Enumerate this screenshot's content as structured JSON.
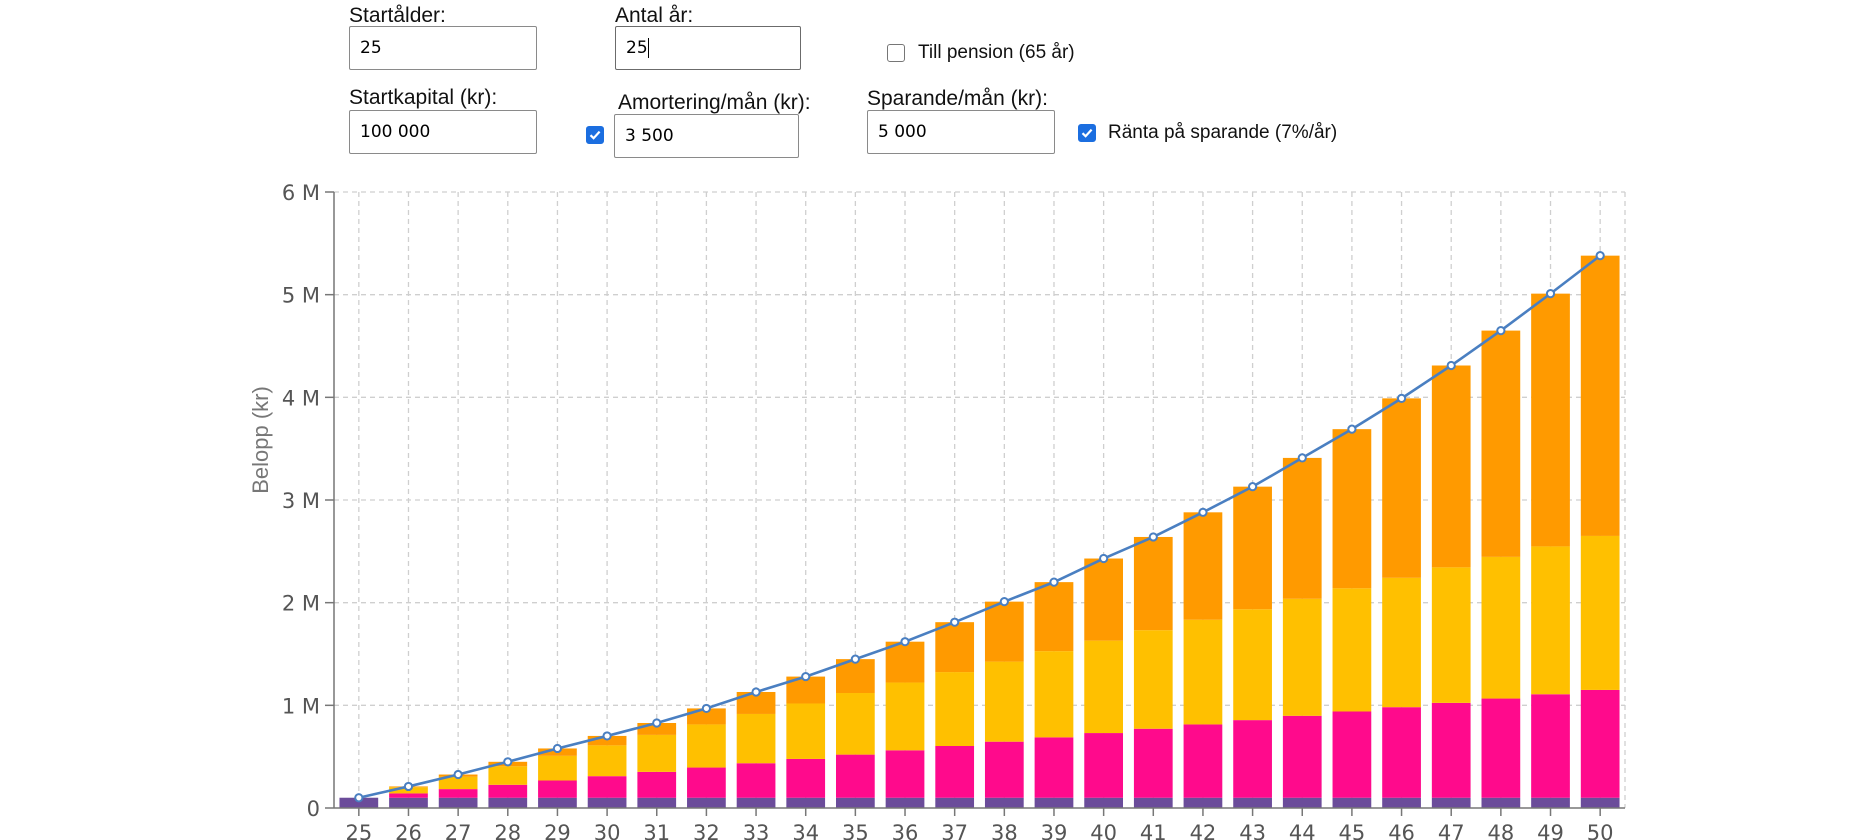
{
  "form": {
    "start_age": {
      "label": "Startålder:",
      "value": "25"
    },
    "years": {
      "label": "Antal år:",
      "value": "25"
    },
    "pension": {
      "label": "Till pension (65 år)",
      "checked": false
    },
    "start_capital": {
      "label": "Startkapital (kr):",
      "value": "100 000"
    },
    "amortization": {
      "label": "Amortering/mån (kr):",
      "value": "3 500",
      "checked": true
    },
    "saving": {
      "label": "Sparande/mån (kr):",
      "value": "5 000"
    },
    "interest": {
      "label": "Ränta på sparande (7%/år)",
      "checked": true
    }
  },
  "colors": {
    "accent": "#1b6ee0",
    "line": "#4a7fc1"
  },
  "chart_data": {
    "type": "bar",
    "stacked": true,
    "ylabel": "Belopp (kr)",
    "xlabel": "",
    "ylim": [
      0,
      6000000
    ],
    "y_ticks": [
      "0",
      "1 M",
      "2 M",
      "3 M",
      "4 M",
      "5 M",
      "6 M"
    ],
    "grid": true,
    "categories": [
      "25",
      "26",
      "27",
      "28",
      "29",
      "30",
      "31",
      "32",
      "33",
      "34",
      "35",
      "36",
      "37",
      "38",
      "39",
      "40",
      "41",
      "42",
      "43",
      "44",
      "45",
      "46",
      "47",
      "48",
      "49",
      "50"
    ],
    "series": [
      {
        "color": "#6b4c9a",
        "values": [
          100000,
          100000,
          100000,
          100000,
          100000,
          100000,
          100000,
          100000,
          100000,
          100000,
          100000,
          100000,
          100000,
          100000,
          100000,
          100000,
          100000,
          100000,
          100000,
          100000,
          100000,
          100000,
          100000,
          100000,
          100000,
          100000
        ]
      },
      {
        "color": "#ff0a8c",
        "values": [
          0,
          42000,
          84000,
          126000,
          168000,
          210000,
          252000,
          294000,
          336000,
          378000,
          420000,
          462000,
          504000,
          546000,
          588000,
          630000,
          672000,
          714000,
          756000,
          798000,
          840000,
          882000,
          924000,
          966000,
          1008000,
          1050000
        ]
      },
      {
        "color": "#ffc000",
        "values": [
          0,
          60000,
          120000,
          180000,
          240000,
          300000,
          360000,
          420000,
          480000,
          540000,
          600000,
          660000,
          720000,
          780000,
          840000,
          900000,
          960000,
          1020000,
          1080000,
          1140000,
          1200000,
          1260000,
          1320000,
          1380000,
          1440000,
          1500000
        ]
      },
      {
        "color": "#ff9a00",
        "values": [
          0,
          8000,
          22000,
          44000,
          72000,
          92000,
          116000,
          156000,
          214000,
          262000,
          330000,
          398000,
          486000,
          584000,
          672000,
          800000,
          908000,
          1046000,
          1194000,
          1372000,
          1550000,
          1748000,
          1966000,
          2204000,
          2462000,
          2730000
        ]
      }
    ],
    "line": {
      "color": "#4a7fc1",
      "values": [
        100000,
        210000,
        326000,
        450000,
        580000,
        702000,
        828000,
        970000,
        1130000,
        1280000,
        1450000,
        1620000,
        1810000,
        2010000,
        2200000,
        2430000,
        2640000,
        2880000,
        3130000,
        3410000,
        3690000,
        3990000,
        4310000,
        4650000,
        5010000,
        5380000
      ]
    }
  }
}
